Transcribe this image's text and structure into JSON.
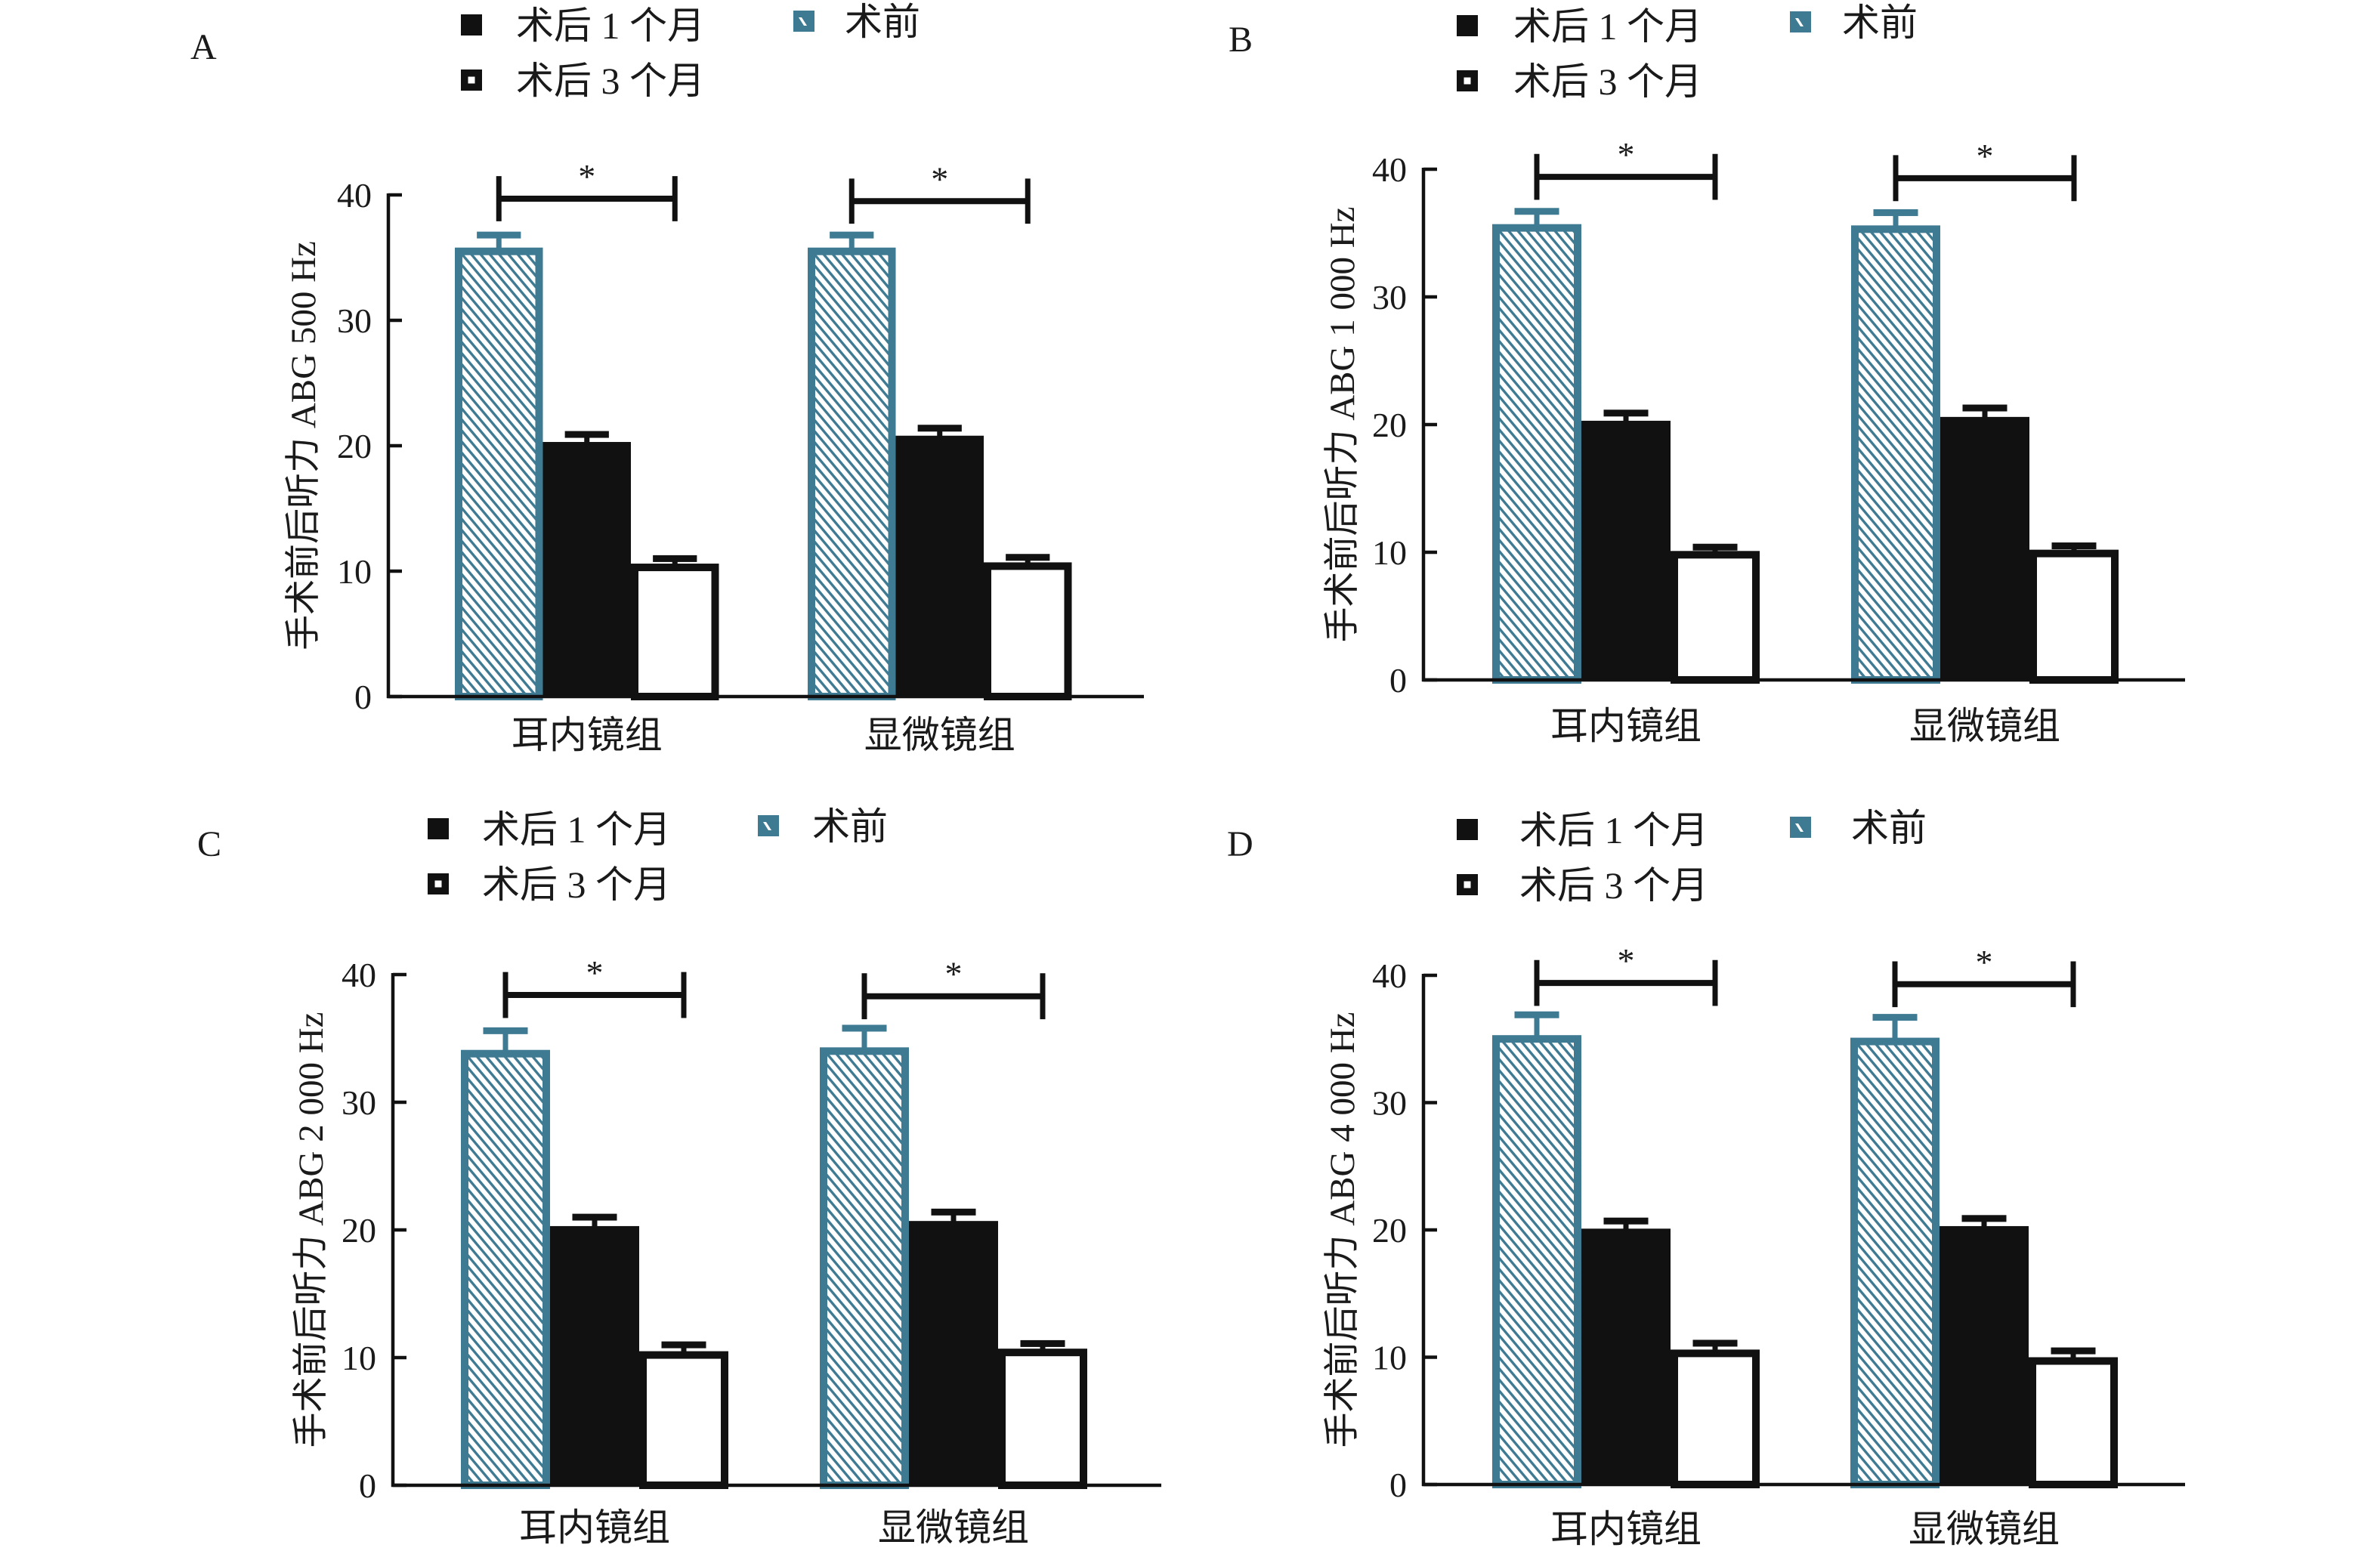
{
  "chart_data": [
    {
      "panel_label": "A",
      "type": "bar",
      "title": "",
      "xlabel": "",
      "ylabel": "手术前后听力 ABG 500 Hz",
      "ylim": [
        0,
        40
      ],
      "yticks": [
        0,
        10,
        20,
        30,
        40
      ],
      "grid": false,
      "categories": [
        "耳内镜组",
        "显微镜组"
      ],
      "series": [
        {
          "name": "术前",
          "values": [
            35.8,
            35.8
          ],
          "error": [
            1.0,
            1.0
          ],
          "style": "hatched",
          "color": "#3F7A93"
        },
        {
          "name": "术后 1 个月",
          "values": [
            20.3,
            20.8
          ],
          "error": [
            0.6,
            0.6
          ],
          "style": "solid",
          "color": "#111111"
        },
        {
          "name": "术后 3 个月",
          "values": [
            10.6,
            10.7
          ],
          "error": [
            0.4,
            0.4
          ],
          "style": "hollow",
          "color": "#111111"
        }
      ],
      "legend": {
        "position": "top",
        "order": [
          "术后 1 个月",
          "术后 3 个月",
          "术前"
        ]
      },
      "annotations": [
        {
          "type": "significance-bracket",
          "category": "耳内镜组",
          "from": "术前",
          "to": "术后 3 个月",
          "label": "*",
          "y": 39.7
        },
        {
          "type": "significance-bracket",
          "category": "显微镜组",
          "from": "术前",
          "to": "术后 3 个月",
          "label": "*",
          "y": 39.5
        }
      ]
    },
    {
      "panel_label": "B",
      "type": "bar",
      "title": "",
      "xlabel": "",
      "ylabel": "手术前后听力 ABG 1 000 Hz",
      "ylim": [
        0,
        40
      ],
      "yticks": [
        0,
        10,
        20,
        30,
        40
      ],
      "grid": false,
      "categories": [
        "耳内镜组",
        "显微镜组"
      ],
      "series": [
        {
          "name": "术前",
          "values": [
            35.7,
            35.6
          ],
          "error": [
            1.0,
            1.0
          ],
          "style": "hatched",
          "color": "#3F7A93"
        },
        {
          "name": "术后 1 个月",
          "values": [
            20.3,
            20.6
          ],
          "error": [
            0.6,
            0.7
          ],
          "style": "solid",
          "color": "#111111"
        },
        {
          "name": "术后 3 个月",
          "values": [
            10.1,
            10.2
          ],
          "error": [
            0.3,
            0.3
          ],
          "style": "hollow",
          "color": "#111111"
        }
      ],
      "legend": {
        "position": "top",
        "order": [
          "术后 1 个月",
          "术后 3 个月",
          "术前"
        ]
      },
      "annotations": [
        {
          "type": "significance-bracket",
          "category": "耳内镜组",
          "from": "术前",
          "to": "术后 3 个月",
          "label": "*",
          "y": 39.4
        },
        {
          "type": "significance-bracket",
          "category": "显微镜组",
          "from": "术前",
          "to": "术后 3 个月",
          "label": "*",
          "y": 39.3
        }
      ]
    },
    {
      "panel_label": "C",
      "type": "bar",
      "title": "",
      "xlabel": "",
      "ylabel": "手术前后听力 ABG 2 000 Hz",
      "ylim": [
        0,
        40
      ],
      "yticks": [
        0,
        10,
        20,
        30,
        40
      ],
      "grid": false,
      "categories": [
        "耳内镜组",
        "显微镜组"
      ],
      "series": [
        {
          "name": "术前",
          "values": [
            34.1,
            34.3
          ],
          "error": [
            1.5,
            1.5
          ],
          "style": "hatched",
          "color": "#3F7A93"
        },
        {
          "name": "术后 1 个月",
          "values": [
            20.3,
            20.7
          ],
          "error": [
            0.7,
            0.7
          ],
          "style": "solid",
          "color": "#111111"
        },
        {
          "name": "术后 3 个月",
          "values": [
            10.5,
            10.7
          ],
          "error": [
            0.5,
            0.4
          ],
          "style": "hollow",
          "color": "#111111"
        }
      ],
      "legend": {
        "position": "top",
        "order": [
          "术后 1 个月",
          "术后 3 个月",
          "术前"
        ]
      },
      "annotations": [
        {
          "type": "significance-bracket",
          "category": "耳内镜组",
          "from": "术前",
          "to": "术后 3 个月",
          "label": "*",
          "y": 38.4
        },
        {
          "type": "significance-bracket",
          "category": "显微镜组",
          "from": "术前",
          "to": "术后 3 个月",
          "label": "*",
          "y": 38.3
        }
      ]
    },
    {
      "panel_label": "D",
      "type": "bar",
      "title": "",
      "xlabel": "",
      "ylabel": "手术前后听力 ABG 4 000 Hz",
      "ylim": [
        0,
        40
      ],
      "yticks": [
        0,
        10,
        20,
        30,
        40
      ],
      "grid": false,
      "categories": [
        "耳内镜组",
        "显微镜组"
      ],
      "series": [
        {
          "name": "术前",
          "values": [
            35.3,
            35.1
          ],
          "error": [
            1.6,
            1.6
          ],
          "style": "hatched",
          "color": "#3F7A93"
        },
        {
          "name": "术后 1 个月",
          "values": [
            20.1,
            20.3
          ],
          "error": [
            0.6,
            0.6
          ],
          "style": "solid",
          "color": "#111111"
        },
        {
          "name": "术后 3 个月",
          "values": [
            10.6,
            10.0
          ],
          "error": [
            0.5,
            0.5
          ],
          "style": "hollow",
          "color": "#111111"
        }
      ],
      "legend": {
        "position": "top",
        "order": [
          "术后 1 个月",
          "术后 3 个月",
          "术前"
        ]
      },
      "annotations": [
        {
          "type": "significance-bracket",
          "category": "耳内镜组",
          "from": "术前",
          "to": "术后 3 个月",
          "label": "*",
          "y": 39.4
        },
        {
          "type": "significance-bracket",
          "category": "显微镜组",
          "from": "术前",
          "to": "术后 3 个月",
          "label": "*",
          "y": 39.3
        }
      ]
    }
  ]
}
